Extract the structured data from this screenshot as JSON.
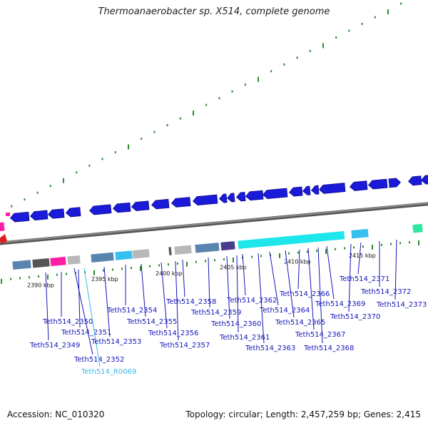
{
  "title": "Thermoanaerobacter sp. X514, complete genome",
  "accession_text": "Accession: NC_010320",
  "topology_text": "Topology: circular; Length: 2,457,259 bp; Genes: 2,415",
  "colors": {
    "backbone": "#8c8c8c",
    "gene_blue": "#1a1ad8",
    "label_blue": "#1616b8",
    "rna_label": "#3ab8e8",
    "tick_green": "#2e8b2e",
    "cyan": "#1ee6ea",
    "steel": "#5a84b0",
    "gray": "#b8b8b8",
    "dark_gray": "#555555",
    "magenta": "#ff1fa5",
    "purple": "#4a3c8c",
    "light_blue": "#35c0f0",
    "mint": "#2ee8a0",
    "red": "#e02020"
  },
  "scale_labels": [
    {
      "text": "2390 kbp",
      "kbp": 2390
    },
    {
      "text": "2395 kbp",
      "kbp": 2395
    },
    {
      "text": "2400 kbp",
      "kbp": 2400
    },
    {
      "text": "2405 kbp",
      "kbp": 2405
    },
    {
      "text": "2410 kbp",
      "kbp": 2410
    },
    {
      "text": "2415 kbp",
      "kbp": 2415
    }
  ],
  "gene_labels": [
    "Teth514_2349",
    "Teth514_2350",
    "Teth514_2351",
    "Teth514_2352",
    "Teth514_R0069",
    "Teth514_2353",
    "Teth514_2354",
    "Teth514_2355",
    "Teth514_2356",
    "Teth514_2357",
    "Teth514_2358",
    "Teth514_2359",
    "Teth514_2360",
    "Teth514_2361",
    "Teth514_2362",
    "Teth514_2363",
    "Teth514_2364",
    "Teth514_2365",
    "Teth514_2366",
    "Teth514_2367",
    "Teth514_2368",
    "Teth514_2369",
    "Teth514_2370",
    "Teth514_2371",
    "Teth514_2372",
    "Teth514_2373"
  ]
}
